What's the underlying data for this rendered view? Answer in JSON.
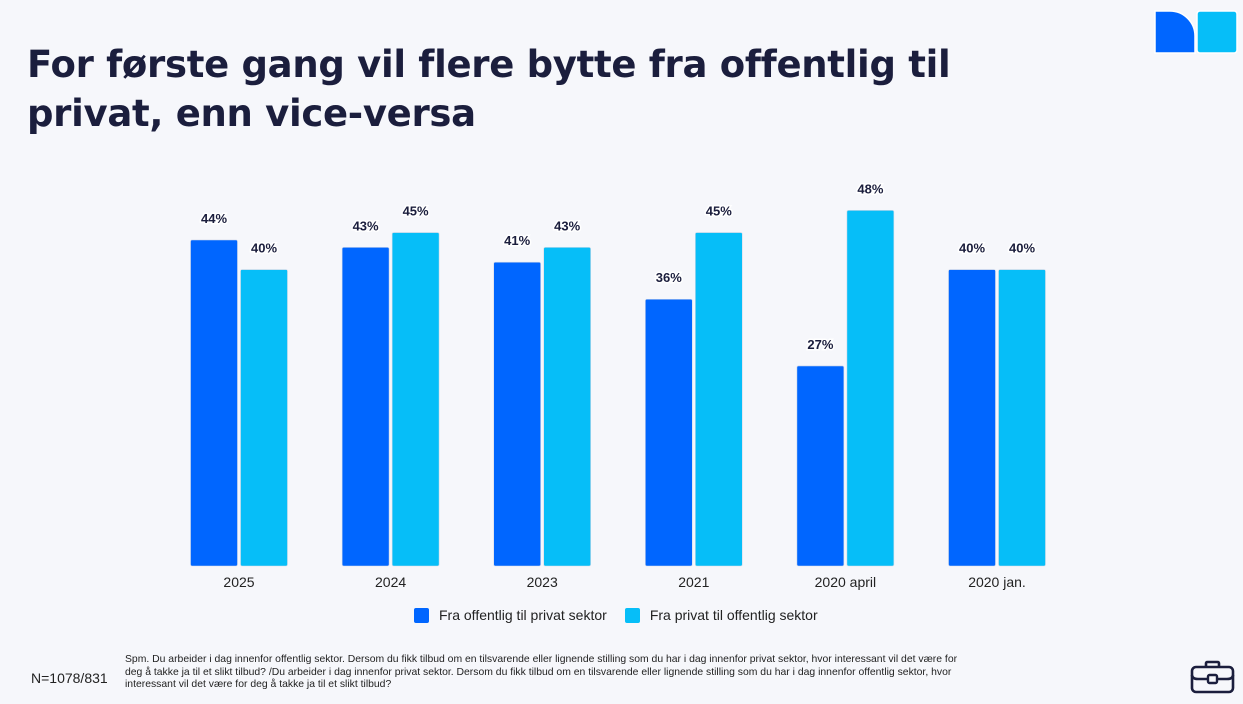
{
  "slide": {
    "title": "For første gang vil flere bytte fra offentlig til privat, enn vice-versa",
    "sample_size": "N=1078/831",
    "footnote": "Spm. Du arbeider i dag innenfor offentlig sektor. Dersom du fikk tilbud om en tilsvarende eller lignende stilling som du har i dag innenfor privat sektor, hvor interessant vil det være for deg å takke ja til et slikt tilbud? /Du arbeider i dag innenfor privat sektor. Dersom du fikk tilbud om en tilsvarende eller lignende stilling som du har i dag innenfor offentlig sektor, hvor interessant vil det være for deg å takke ja til et slikt tilbud?",
    "icons": {
      "logo": "brand-logo-icon",
      "footer": "briefcase-icon"
    }
  },
  "colors": {
    "series1": "#0066ff",
    "series2": "#06bef8",
    "text": "#1b1e3d",
    "background": "#f6f7fb"
  },
  "chart_data": {
    "type": "bar",
    "title": "For første gang vil flere bytte fra offentlig til privat, enn vice-versa",
    "xlabel": "",
    "ylabel": "",
    "ylim": [
      0,
      48
    ],
    "grid": false,
    "legend_position": "bottom",
    "value_suffix": "%",
    "categories": [
      "2025",
      "2024",
      "2023",
      "2021",
      "2020 april",
      "2020 jan."
    ],
    "series": [
      {
        "name": "Fra offentlig til privat sektor",
        "values": [
          44,
          43,
          41,
          36,
          27,
          40
        ]
      },
      {
        "name": "Fra privat til offentlig sektor",
        "values": [
          40,
          45,
          43,
          45,
          48,
          40
        ]
      }
    ]
  }
}
